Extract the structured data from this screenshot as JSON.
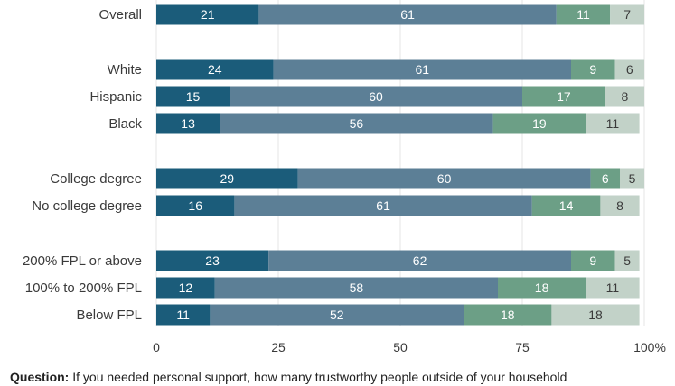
{
  "chart_data": {
    "type": "bar",
    "orientation": "horizontal",
    "stacked": true,
    "categories": [
      "Overall",
      "White",
      "Hispanic",
      "Black",
      "College degree",
      "No college degree",
      "200% FPL or above",
      "100% to 200% FPL",
      "Below FPL"
    ],
    "groups": [
      1,
      3,
      2,
      3
    ],
    "series": [
      {
        "color": "#1b5c7a",
        "values": [
          21,
          24,
          15,
          13,
          29,
          16,
          23,
          12,
          11
        ]
      },
      {
        "color": "#5c7f96",
        "values": [
          61,
          61,
          60,
          56,
          60,
          61,
          62,
          58,
          52
        ]
      },
      {
        "color": "#6c9f86",
        "values": [
          11,
          9,
          17,
          19,
          6,
          14,
          9,
          18,
          18
        ]
      },
      {
        "color": "#c2d2c8",
        "values": [
          7,
          6,
          8,
          11,
          5,
          8,
          5,
          11,
          18
        ]
      }
    ],
    "xlim": [
      0,
      100
    ],
    "xticks": [
      "0",
      "25",
      "50",
      "75",
      "100"
    ],
    "xtick_suffix": "%",
    "grid": "vertical",
    "legend": "none"
  },
  "caption": {
    "label": "Question:",
    "text": "If you needed personal support, how many trustworthy people outside of your household"
  }
}
